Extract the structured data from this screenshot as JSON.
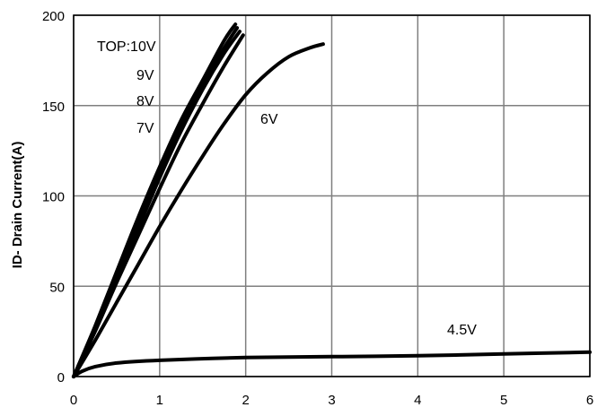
{
  "chart_data": {
    "type": "line",
    "title": "",
    "xlabel": "",
    "ylabel": "ID- Drain Current(A)",
    "xlim": [
      0,
      6
    ],
    "ylim": [
      0,
      200
    ],
    "x_ticks": [
      "0",
      "1",
      "2",
      "3",
      "4",
      "5",
      "6"
    ],
    "y_ticks": [
      "0",
      "50",
      "100",
      "150",
      "200"
    ],
    "grid": true,
    "series": [
      {
        "label": "TOP:10V",
        "x": [
          0,
          0.25,
          0.5,
          0.75,
          1.0,
          1.25,
          1.5,
          1.75,
          1.88
        ],
        "y": [
          0,
          28,
          58,
          88,
          116,
          142,
          164,
          186,
          195
        ]
      },
      {
        "label": "9V",
        "x": [
          0,
          0.25,
          0.5,
          0.75,
          1.0,
          1.25,
          1.5,
          1.75,
          1.9
        ],
        "y": [
          0,
          27,
          56,
          85,
          113,
          139,
          162,
          182,
          193
        ]
      },
      {
        "label": "8V",
        "x": [
          0,
          0.25,
          0.5,
          0.75,
          1.0,
          1.25,
          1.5,
          1.75,
          1.93
        ],
        "y": [
          0,
          26,
          54,
          82,
          110,
          136,
          159,
          179,
          191
        ]
      },
      {
        "label": "7V",
        "x": [
          0,
          0.25,
          0.5,
          0.75,
          1.0,
          1.25,
          1.5,
          1.75,
          1.97
        ],
        "y": [
          0,
          25,
          52,
          78,
          104,
          129,
          151,
          172,
          189
        ]
      },
      {
        "label": "6V",
        "x": [
          0,
          0.25,
          0.5,
          0.75,
          1.0,
          1.25,
          1.5,
          1.75,
          2.0,
          2.25,
          2.5,
          2.75,
          2.9
        ],
        "y": [
          0,
          20,
          41,
          62,
          83,
          103,
          122,
          140,
          156,
          168,
          177,
          182,
          184
        ]
      },
      {
        "label": "4.5V",
        "x": [
          0,
          0.1,
          0.25,
          0.5,
          1.0,
          2.0,
          3.0,
          4.0,
          5.0,
          6.0
        ],
        "y": [
          0,
          3,
          5.5,
          7.5,
          9,
          10.5,
          11,
          11.5,
          12.5,
          13.5
        ]
      }
    ]
  }
}
